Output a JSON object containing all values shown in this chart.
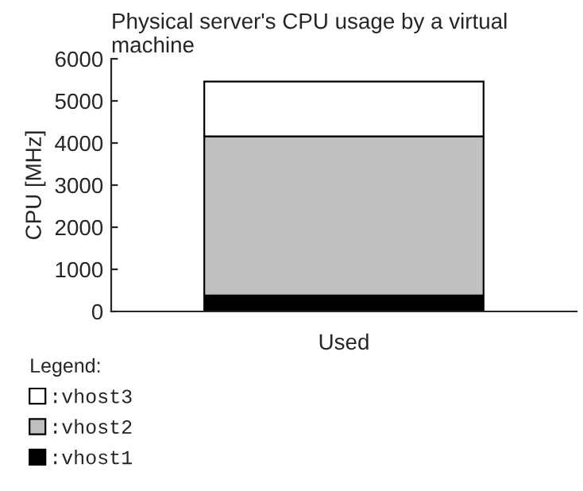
{
  "chart_data": {
    "type": "bar",
    "title": "Physical server's CPU usage by a virtual machine",
    "ylabel": "CPU [MHz]",
    "categories": [
      "Used"
    ],
    "stacked": true,
    "series": [
      {
        "name": ":vhost1",
        "color": "#000000",
        "values": [
          380
        ]
      },
      {
        "name": ":vhost2",
        "color": "#c0c0c0",
        "values": [
          3780
        ]
      },
      {
        "name": ":vhost3",
        "color": "#ffffff",
        "values": [
          1300
        ]
      }
    ],
    "ylim": [
      0,
      6000
    ],
    "yticks": [
      0,
      1000,
      2000,
      3000,
      4000,
      5000,
      6000
    ],
    "grid": false,
    "legend": "bottom left",
    "legend_title": "Legend:"
  }
}
